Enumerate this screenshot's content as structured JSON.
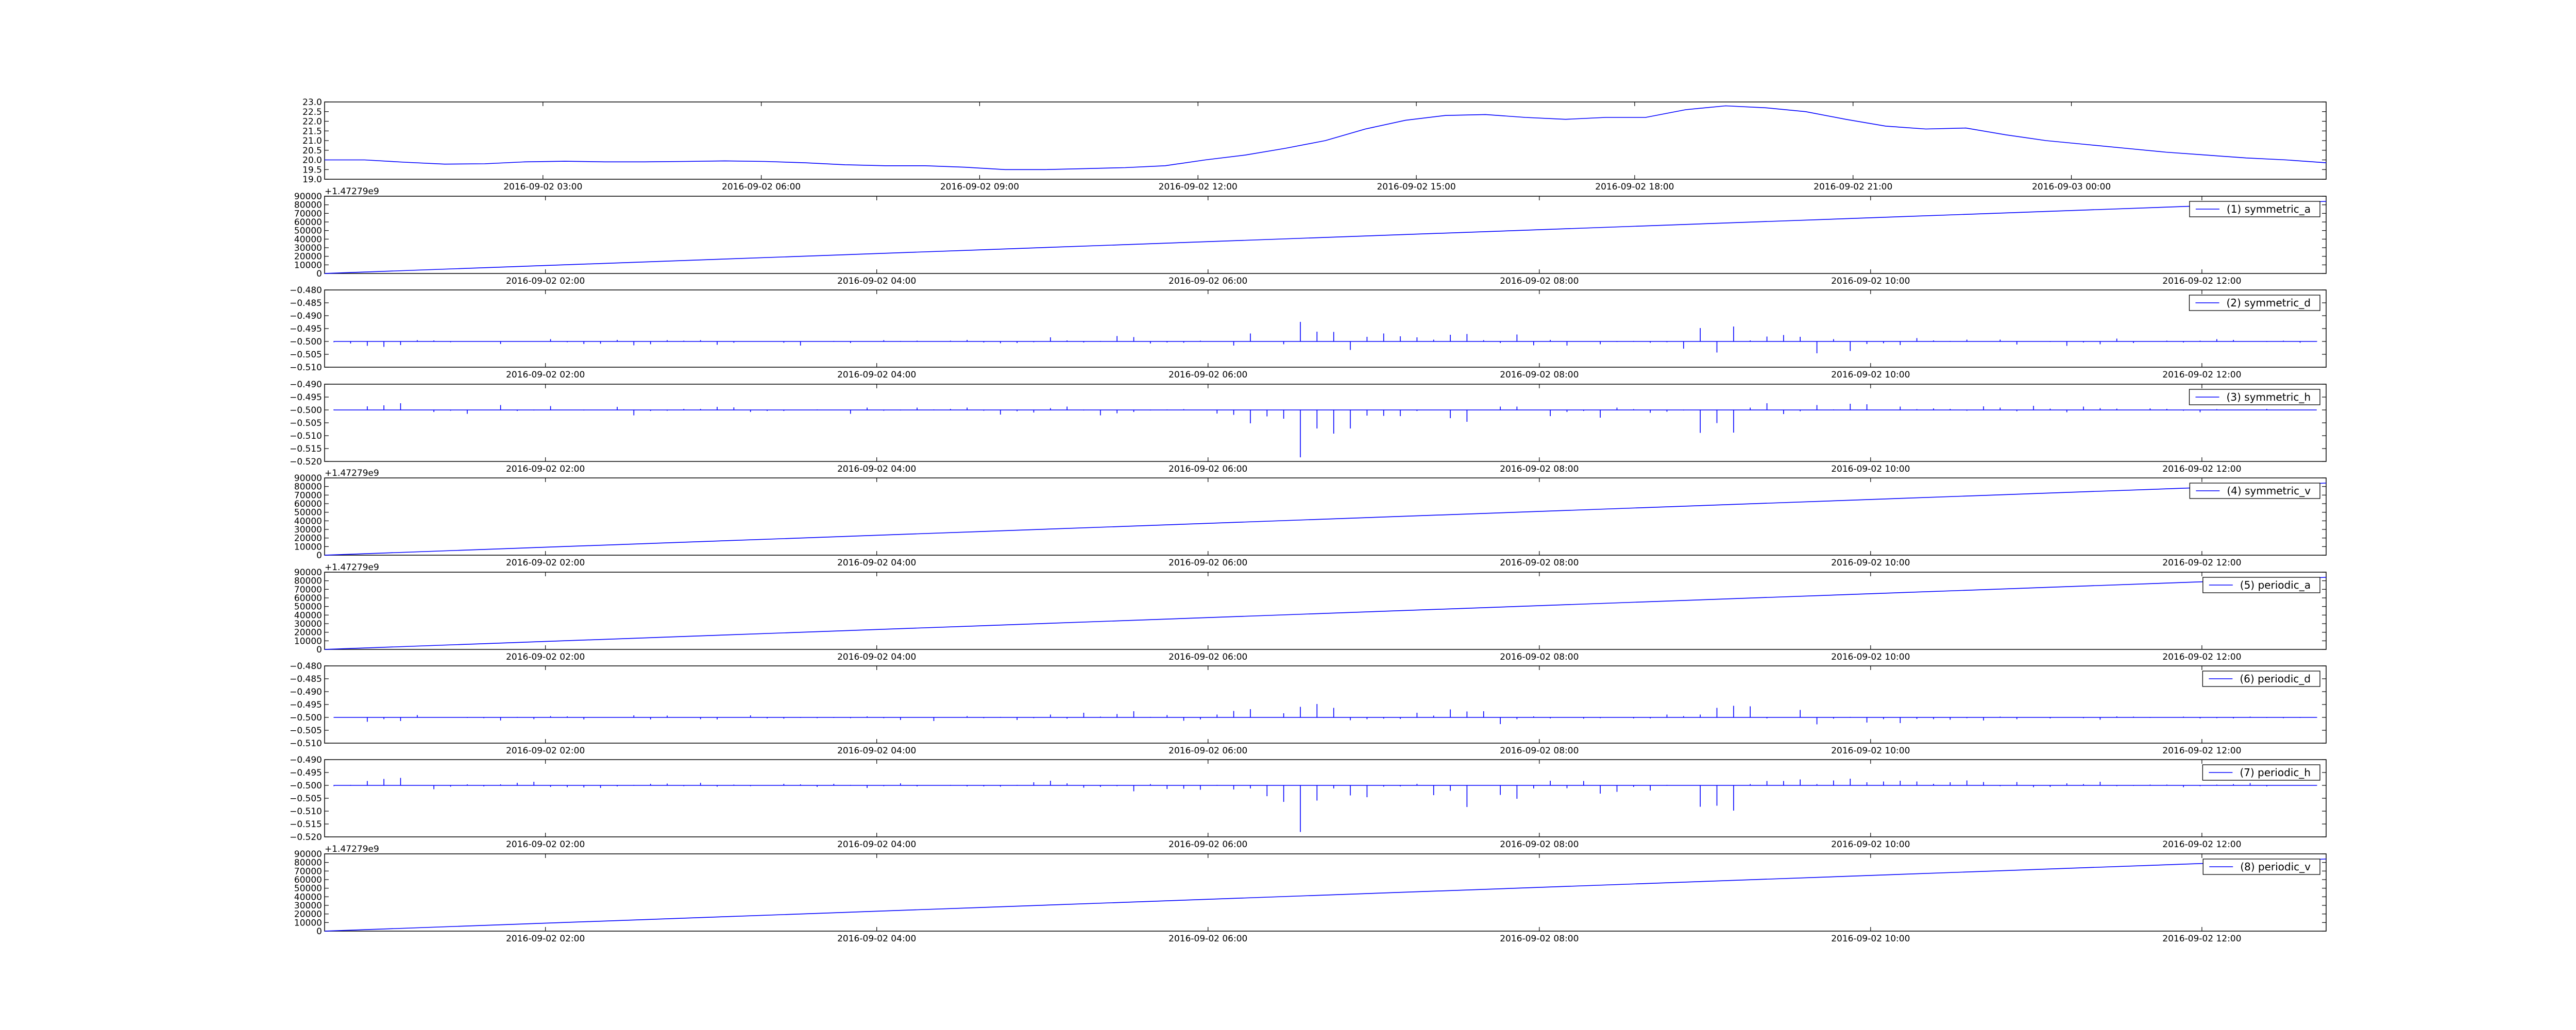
{
  "chart_data": [
    {
      "type": "line",
      "series": [
        {
          "values": [
            20.0,
            20.0,
            19.88,
            19.78,
            19.8,
            19.9,
            19.93,
            19.9,
            19.9,
            19.92,
            19.95,
            19.92,
            19.85,
            19.75,
            19.7,
            19.7,
            19.62,
            19.5,
            19.5,
            19.55,
            19.6,
            19.7,
            20.0,
            20.25,
            20.6,
            21.0,
            21.6,
            22.05,
            22.3,
            22.35,
            22.2,
            22.1,
            22.2,
            22.2,
            22.6,
            22.8,
            22.7,
            22.5,
            22.1,
            21.75,
            21.6,
            21.65,
            21.3,
            21.0,
            20.8,
            20.6,
            20.4,
            20.25,
            20.1,
            20.0,
            19.85
          ]
        }
      ],
      "x_start": "2016-09-02 00:00",
      "x_end": "2016-09-03 03:30",
      "ylim": [
        19.0,
        23.0
      ],
      "yticks": [
        "23.0",
        "22.5",
        "22.0",
        "21.5",
        "21.0",
        "20.5",
        "20.0",
        "19.5",
        "19.0"
      ],
      "xticks": [
        "2016-09-02 03:00",
        "2016-09-02 06:00",
        "2016-09-02 09:00",
        "2016-09-02 12:00",
        "2016-09-02 15:00",
        "2016-09-02 18:00",
        "2016-09-02 21:00",
        "2016-09-03 00:00"
      ],
      "y_offset_label": "",
      "legend": "",
      "legend_position": "none",
      "grid": false
    },
    {
      "type": "line",
      "series": [
        {
          "name": "(1) symmetric_a",
          "values": [
            0,
            84000
          ]
        }
      ],
      "x_start": "2016-09-02 00:40",
      "x_end": "2016-09-02 12:45",
      "ylim": [
        0,
        90000
      ],
      "yticks": [
        "90000",
        "80000",
        "70000",
        "60000",
        "50000",
        "40000",
        "30000",
        "20000",
        "10000",
        "0"
      ],
      "xticks": [
        "2016-09-02 02:00",
        "2016-09-02 04:00",
        "2016-09-02 06:00",
        "2016-09-02 08:00",
        "2016-09-02 10:00",
        "2016-09-02 12:00"
      ],
      "y_offset_label": "+1.47279e9",
      "legend": "(1) symmetric_a",
      "legend_position": "top-right",
      "grid": false
    },
    {
      "type": "line",
      "series": [
        {
          "name": "(2) symmetric_d",
          "baseline": -0.5,
          "values": [
            -0.5003,
            -0.5008,
            -0.5017,
            -0.5021,
            -0.5014,
            -0.4995,
            -0.4996,
            -0.5003,
            -0.5,
            -0.5,
            -0.501,
            -0.5001,
            -0.5001,
            -0.4991,
            -0.5003,
            -0.501,
            -0.5009,
            -0.4994,
            -0.5015,
            -0.5011,
            -0.4995,
            -0.4997,
            -0.4995,
            -0.5013,
            -0.5005,
            -0.4999,
            -0.4999,
            -0.5005,
            -0.5016,
            -0.5001,
            -0.4998,
            -0.5006,
            -0.5,
            -0.4995,
            -0.4998,
            -0.4997,
            -0.5,
            -0.4997,
            -0.4994,
            -0.5004,
            -0.5007,
            -0.5006,
            -0.5003,
            -0.4984,
            -0.4996,
            -0.5004,
            -0.4998,
            -0.4979,
            -0.4983,
            -0.5008,
            -0.5004,
            -0.5005,
            -0.4997,
            -0.5,
            -0.5016,
            -0.4969,
            -0.5001,
            -0.5011,
            -0.4924,
            -0.4962,
            -0.4963,
            -0.5033,
            -0.4982,
            -0.4969,
            -0.498,
            -0.4984,
            -0.4993,
            -0.4974,
            -0.4971,
            -0.4995,
            -0.5006,
            -0.4973,
            -0.5015,
            -0.4994,
            -0.5016,
            -0.4999,
            -0.5011,
            -0.5002,
            -0.4998,
            -0.5005,
            -0.5003,
            -0.5028,
            -0.4948,
            -0.5043,
            -0.4942,
            -0.4996,
            -0.4981,
            -0.4975,
            -0.4982,
            -0.5046,
            -0.4991,
            -0.5037,
            -0.501,
            -0.5007,
            -0.5014,
            -0.4987,
            -0.4996,
            -0.4998,
            -0.4993,
            -0.5,
            -0.4993,
            -0.5012,
            -0.4999,
            -0.5002,
            -0.5017,
            -0.5004,
            -0.5011,
            -0.4989,
            -0.5006,
            -0.4999,
            -0.4997,
            -0.5004,
            -0.4997,
            -0.4991,
            -0.4994,
            -0.5001,
            -0.5002,
            -0.4997,
            -0.5005,
            -0.5001
          ]
        }
      ],
      "x_start": "2016-09-02 00:40",
      "x_end": "2016-09-02 12:45",
      "ylim": [
        -0.51,
        -0.48
      ],
      "yticks": [
        "−0.480",
        "−0.485",
        "−0.490",
        "−0.495",
        "−0.500",
        "−0.505",
        "−0.510"
      ],
      "xticks": [
        "2016-09-02 02:00",
        "2016-09-02 04:00",
        "2016-09-02 06:00",
        "2016-09-02 08:00",
        "2016-09-02 10:00",
        "2016-09-02 12:00"
      ],
      "y_offset_label": "",
      "legend": "(2) symmetric_d",
      "legend_position": "top-right",
      "grid": false
    },
    {
      "type": "line",
      "series": [
        {
          "name": "(3) symmetric_h",
          "baseline": -0.5,
          "values": [
            -0.4998,
            -0.4999,
            -0.4986,
            -0.4982,
            -0.4974,
            -0.5001,
            -0.5008,
            -0.5003,
            -0.5015,
            -0.5,
            -0.4981,
            -0.5004,
            -0.5002,
            -0.4985,
            -0.5001,
            -0.5002,
            -0.4999,
            -0.4988,
            -0.5021,
            -0.5004,
            -0.5003,
            -0.4996,
            -0.4996,
            -0.4988,
            -0.499,
            -0.5008,
            -0.5004,
            -0.5004,
            -0.5001,
            -0.4998,
            -0.4999,
            -0.5015,
            -0.4991,
            -0.5003,
            -0.5002,
            -0.4991,
            -0.4998,
            -0.4996,
            -0.4991,
            -0.5003,
            -0.5018,
            -0.5005,
            -0.501,
            -0.4993,
            -0.4987,
            -0.5002,
            -0.5021,
            -0.5013,
            -0.5008,
            -0.5002,
            -0.4998,
            -0.4997,
            -0.5001,
            -0.5014,
            -0.5019,
            -0.5052,
            -0.5025,
            -0.5034,
            -0.5184,
            -0.5072,
            -0.5092,
            -0.5072,
            -0.5022,
            -0.5023,
            -0.5024,
            -0.5004,
            -0.4999,
            -0.5032,
            -0.5046,
            -0.5001,
            -0.4987,
            -0.4987,
            -0.5,
            -0.5024,
            -0.5008,
            -0.5004,
            -0.503,
            -0.4991,
            -0.4997,
            -0.5011,
            -0.5007,
            -0.5002,
            -0.5089,
            -0.5051,
            -0.5088,
            -0.4991,
            -0.4974,
            -0.5016,
            -0.5005,
            -0.4981,
            -0.4998,
            -0.4976,
            -0.4978,
            -0.4999,
            -0.4987,
            -0.4997,
            -0.4994,
            -0.4996,
            -0.5003,
            -0.4986,
            -0.4991,
            -0.5005,
            -0.4984,
            -0.4995,
            -0.5009,
            -0.4987,
            -0.4993,
            -0.4995,
            -0.5001,
            -0.4994,
            -0.4996,
            -0.5003,
            -0.5009,
            -0.4997,
            -0.5,
            -0.5,
            -0.4996,
            -0.5,
            -0.5,
            -0.5
          ]
        }
      ],
      "x_start": "2016-09-02 00:40",
      "x_end": "2016-09-02 12:45",
      "ylim": [
        -0.52,
        -0.49
      ],
      "yticks": [
        "−0.490",
        "−0.495",
        "−0.500",
        "−0.505",
        "−0.510",
        "−0.515",
        "−0.520"
      ],
      "xticks": [
        "2016-09-02 02:00",
        "2016-09-02 04:00",
        "2016-09-02 06:00",
        "2016-09-02 08:00",
        "2016-09-02 10:00",
        "2016-09-02 12:00"
      ],
      "y_offset_label": "",
      "legend": "(3) symmetric_h",
      "legend_position": "top-right",
      "grid": false
    },
    {
      "type": "line",
      "series": [
        {
          "name": "(4) symmetric_v",
          "values": [
            0,
            84000
          ]
        }
      ],
      "x_start": "2016-09-02 00:40",
      "x_end": "2016-09-02 12:45",
      "ylim": [
        0,
        90000
      ],
      "yticks": [
        "90000",
        "80000",
        "70000",
        "60000",
        "50000",
        "40000",
        "30000",
        "20000",
        "10000",
        "0"
      ],
      "xticks": [
        "2016-09-02 02:00",
        "2016-09-02 04:00",
        "2016-09-02 06:00",
        "2016-09-02 08:00",
        "2016-09-02 10:00",
        "2016-09-02 12:00"
      ],
      "y_offset_label": "+1.47279e9",
      "legend": "(4) symmetric_v",
      "legend_position": "top-right",
      "grid": false
    },
    {
      "type": "line",
      "series": [
        {
          "name": "(5) periodic_a",
          "values": [
            0,
            84000
          ]
        }
      ],
      "x_start": "2016-09-02 00:40",
      "x_end": "2016-09-02 12:45",
      "ylim": [
        0,
        90000
      ],
      "yticks": [
        "90000",
        "80000",
        "70000",
        "60000",
        "50000",
        "40000",
        "30000",
        "20000",
        "10000",
        "0"
      ],
      "xticks": [
        "2016-09-02 02:00",
        "2016-09-02 04:00",
        "2016-09-02 06:00",
        "2016-09-02 08:00",
        "2016-09-02 10:00",
        "2016-09-02 12:00"
      ],
      "y_offset_label": "+1.47279e9",
      "legend": "(5) periodic_a",
      "legend_position": "top-right",
      "grid": false
    },
    {
      "type": "line",
      "series": [
        {
          "name": "(6) periodic_d",
          "baseline": -0.5,
          "values": [
            -0.4999,
            -0.5,
            -0.5017,
            -0.5007,
            -0.5014,
            -0.4991,
            -0.4999,
            -0.5001,
            -0.5002,
            -0.5003,
            -0.5012,
            -0.4998,
            -0.5007,
            -0.4995,
            -0.4996,
            -0.5008,
            -0.4999,
            -0.4999,
            -0.4992,
            -0.5008,
            -0.4993,
            -0.5001,
            -0.5007,
            -0.5008,
            -0.4999,
            -0.4992,
            -0.5004,
            -0.5005,
            -0.5002,
            -0.5003,
            -0.5002,
            -0.5003,
            -0.4996,
            -0.5003,
            -0.501,
            -0.4999,
            -0.5014,
            -0.5001,
            -0.4995,
            -0.5003,
            -0.4998,
            -0.501,
            -0.5003,
            -0.4989,
            -0.5005,
            -0.4982,
            -0.4997,
            -0.4987,
            -0.4976,
            -0.4998,
            -0.4991,
            -0.5013,
            -0.5008,
            -0.4989,
            -0.4975,
            -0.4968,
            -0.5001,
            -0.4984,
            -0.4959,
            -0.4948,
            -0.4963,
            -0.5011,
            -0.5007,
            -0.5005,
            -0.5006,
            -0.4982,
            -0.4993,
            -0.4969,
            -0.4977,
            -0.4976,
            -0.5026,
            -0.5007,
            -0.4996,
            -0.5004,
            -0.5,
            -0.5005,
            -0.5003,
            -0.5,
            -0.5004,
            -0.5004,
            -0.4989,
            -0.4995,
            -0.4989,
            -0.4963,
            -0.4955,
            -0.4957,
            -0.5004,
            -0.4999,
            -0.4971,
            -0.5027,
            -0.5005,
            -0.4998,
            -0.502,
            -0.5007,
            -0.5022,
            -0.5006,
            -0.5007,
            -0.5009,
            -0.5003,
            -0.5012,
            -0.4997,
            -0.5007,
            -0.5001,
            -0.5004,
            -0.5,
            -0.5003,
            -0.5009,
            -0.4996,
            -0.4997,
            -0.5002,
            -0.5,
            -0.4997,
            -0.5004,
            -0.5003,
            -0.5004,
            -0.4997,
            -0.5002,
            -0.5003,
            -0.5002,
            -0.4999
          ]
        }
      ],
      "x_start": "2016-09-02 00:40",
      "x_end": "2016-09-02 12:45",
      "ylim": [
        -0.51,
        -0.48
      ],
      "yticks": [
        "−0.480",
        "−0.485",
        "−0.490",
        "−0.495",
        "−0.500",
        "−0.505",
        "−0.510"
      ],
      "xticks": [
        "2016-09-02 02:00",
        "2016-09-02 04:00",
        "2016-09-02 06:00",
        "2016-09-02 08:00",
        "2016-09-02 10:00",
        "2016-09-02 12:00"
      ],
      "y_offset_label": "",
      "legend": "(6) periodic_d",
      "legend_position": "top-right",
      "grid": false
    },
    {
      "type": "line",
      "series": [
        {
          "name": "(7) periodic_h",
          "baseline": -0.5,
          "values": [
            -0.5003,
            -0.4998,
            -0.4983,
            -0.4975,
            -0.4971,
            -0.4999,
            -0.5015,
            -0.5005,
            -0.4996,
            -0.5004,
            -0.4996,
            -0.499,
            -0.4986,
            -0.5006,
            -0.5007,
            -0.5008,
            -0.501,
            -0.5004,
            -0.4998,
            -0.4994,
            -0.4993,
            -0.5003,
            -0.499,
            -0.5005,
            -0.4997,
            -0.5003,
            -0.4999,
            -0.4994,
            -0.4996,
            -0.5006,
            -0.4994,
            -0.4998,
            -0.501,
            -0.5003,
            -0.4992,
            -0.5004,
            -0.4999,
            -0.4998,
            -0.5004,
            -0.5004,
            -0.5005,
            -0.4998,
            -0.4988,
            -0.4982,
            -0.4992,
            -0.5009,
            -0.5006,
            -0.5003,
            -0.5023,
            -0.4995,
            -0.5014,
            -0.5013,
            -0.5017,
            -0.4998,
            -0.5016,
            -0.5012,
            -0.5042,
            -0.5064,
            -0.5181,
            -0.5059,
            -0.5012,
            -0.5039,
            -0.5046,
            -0.5005,
            -0.5004,
            -0.4994,
            -0.5038,
            -0.5021,
            -0.5084,
            -0.5001,
            -0.5037,
            -0.5052,
            -0.5012,
            -0.4982,
            -0.5011,
            -0.4983,
            -0.5032,
            -0.5025,
            -0.5006,
            -0.502,
            -0.4998,
            -0.5,
            -0.5083,
            -0.5079,
            -0.5098,
            -0.4995,
            -0.4983,
            -0.4983,
            -0.4977,
            -0.4995,
            -0.4981,
            -0.4974,
            -0.4988,
            -0.4985,
            -0.4982,
            -0.4985,
            -0.4994,
            -0.4988,
            -0.4981,
            -0.4987,
            -0.5003,
            -0.4987,
            -0.5007,
            -0.5006,
            -0.4992,
            -0.4995,
            -0.4986,
            -0.5003,
            -0.5002,
            -0.4997,
            -0.4997,
            -0.5007,
            -0.5003,
            -0.4997,
            -0.4995,
            -0.4991,
            -0.5004,
            -0.5,
            -0.5,
            -0.5001
          ]
        }
      ],
      "x_start": "2016-09-02 00:40",
      "x_end": "2016-09-02 12:45",
      "ylim": [
        -0.52,
        -0.49
      ],
      "yticks": [
        "−0.490",
        "−0.495",
        "−0.500",
        "−0.505",
        "−0.510",
        "−0.515",
        "−0.520"
      ],
      "xticks": [
        "2016-09-02 02:00",
        "2016-09-02 04:00",
        "2016-09-02 06:00",
        "2016-09-02 08:00",
        "2016-09-02 10:00",
        "2016-09-02 12:00"
      ],
      "y_offset_label": "",
      "legend": "(7) periodic_h",
      "legend_position": "top-right",
      "grid": false
    },
    {
      "type": "line",
      "series": [
        {
          "name": "(8) periodic_v",
          "values": [
            0,
            84000
          ]
        }
      ],
      "x_start": "2016-09-02 00:40",
      "x_end": "2016-09-02 12:45",
      "ylim": [
        0,
        90000
      ],
      "yticks": [
        "90000",
        "80000",
        "70000",
        "60000",
        "50000",
        "40000",
        "30000",
        "20000",
        "10000",
        "0"
      ],
      "xticks": [
        "2016-09-02 02:00",
        "2016-09-02 04:00",
        "2016-09-02 06:00",
        "2016-09-02 08:00",
        "2016-09-02 10:00",
        "2016-09-02 12:00"
      ],
      "y_offset_label": "+1.47279e9",
      "legend": "(8) periodic_v",
      "legend_position": "top-right",
      "grid": false
    }
  ],
  "colors": {
    "line": "#0000ff",
    "axes": "#000000",
    "background": "#ffffff"
  }
}
